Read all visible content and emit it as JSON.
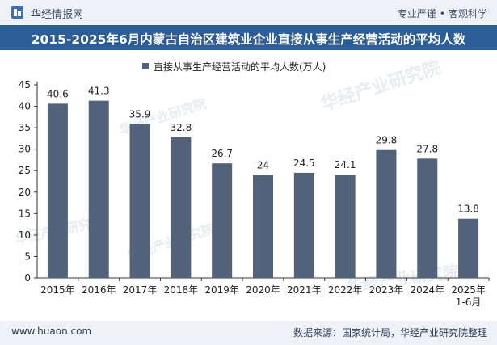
{
  "header": {
    "brand": "华经情报网",
    "tag1": "专业严谨",
    "tag2": "客观科学",
    "title": "2015-2025年6月内蒙古自治区建筑业企业直接从事生产经营活动的平均人数"
  },
  "watermark": "华经产业研究院",
  "footer": {
    "site": "www.huaon.com",
    "source": "数据来源：国家统计局，华经产业研究院整理"
  },
  "colors": {
    "bar": "#52627a",
    "titlebar": "#2d5d96",
    "band": "#eef1f6"
  },
  "chart_data": {
    "type": "bar",
    "categories": [
      "2015年",
      "2016年",
      "2017年",
      "2018年",
      "2019年",
      "2020年",
      "2021年",
      "2022年",
      "2023年",
      "2024年",
      "2025年 1-6月"
    ],
    "series": [
      {
        "name": "直接从事生产经营活动的平均人数(万人)",
        "values": [
          40.6,
          41.3,
          35.9,
          32.8,
          26.7,
          24,
          24.5,
          24.1,
          29.8,
          27.8,
          13.8
        ]
      }
    ],
    "ylim": [
      0,
      45
    ],
    "yticks": [
      0,
      5,
      10,
      15,
      20,
      25,
      30,
      35,
      40,
      45
    ],
    "grid": false,
    "legend_position": "top"
  }
}
